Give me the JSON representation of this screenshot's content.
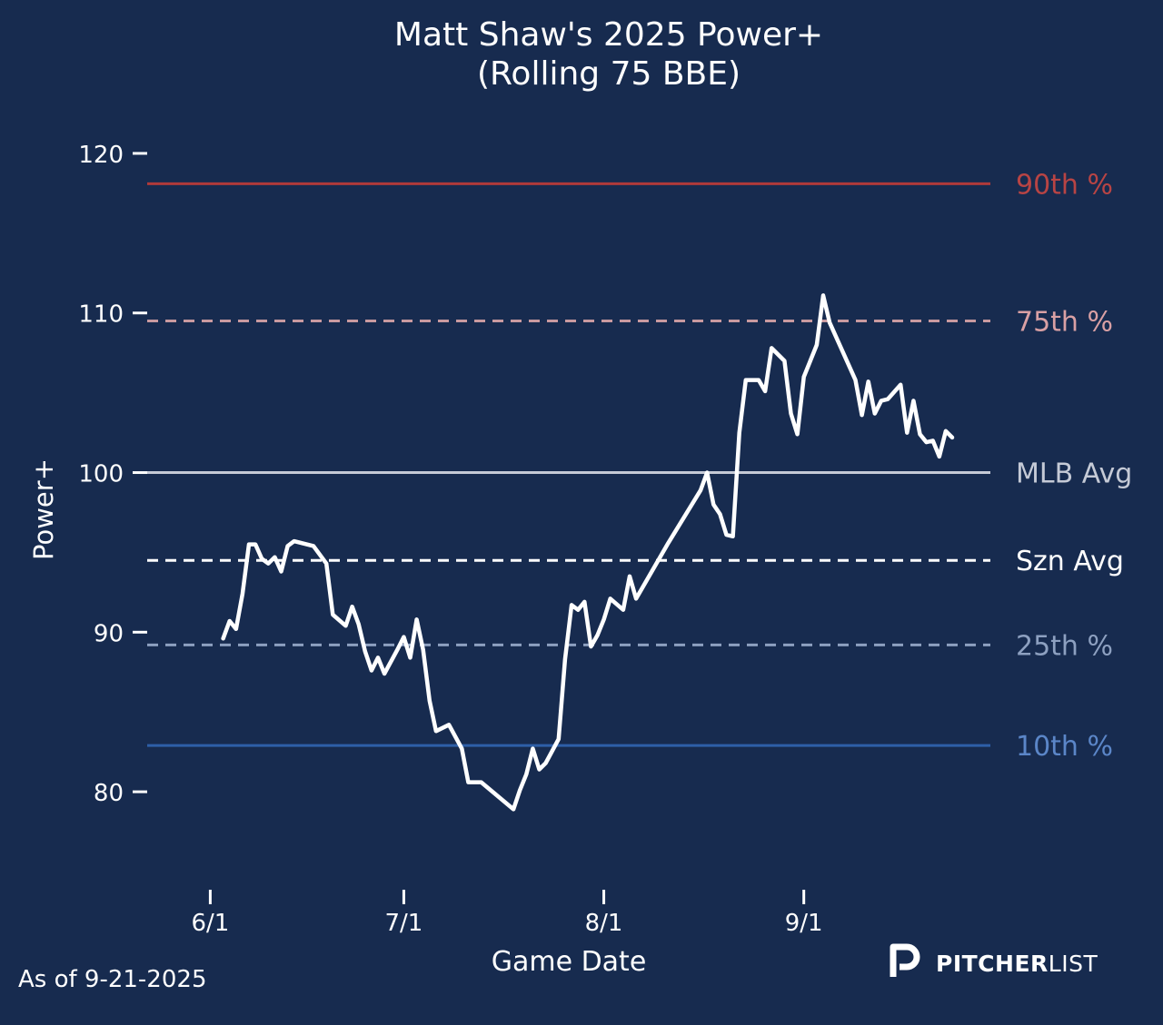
{
  "footer": {
    "as_of": "As of 9-21-2025",
    "brand_bold": "PITCHER",
    "brand_light": "LIST"
  },
  "colors": {
    "background": "#172b4f",
    "line": "#ffffff",
    "p90": "#b03a3a",
    "p75": "#c99aa0",
    "mlb_avg": "#c5cad6",
    "szn_avg": "#ffffff",
    "p25": "#8da0c0",
    "p10": "#2e5fa8",
    "p90_label": "#b84444",
    "p75_label": "#d9a0a4",
    "p10_label": "#5b86c8"
  },
  "chart_data": {
    "type": "line",
    "title": "Matt Shaw's 2025 Power+",
    "subtitle": "(Rolling 75 BBE)",
    "xlabel": "Game Date",
    "ylabel": "Power+",
    "x_domain": [
      "2025-05-28",
      "2025-09-24"
    ],
    "ylim": [
      75,
      122.5
    ],
    "y_ticks": [
      80,
      90,
      100,
      110,
      120
    ],
    "x_ticks": [
      {
        "date": "2025-06-01",
        "label": "6/1"
      },
      {
        "date": "2025-07-01",
        "label": "7/1"
      },
      {
        "date": "2025-08-01",
        "label": "8/1"
      },
      {
        "date": "2025-09-01",
        "label": "9/1"
      }
    ],
    "grid": false,
    "reference_lines": [
      {
        "key": "p90",
        "label": "90th %",
        "value": 118.1,
        "style": "solid"
      },
      {
        "key": "p75",
        "label": "75th %",
        "value": 109.5,
        "style": "dashed"
      },
      {
        "key": "mlb_avg",
        "label": "MLB Avg",
        "value": 100.0,
        "style": "solid"
      },
      {
        "key": "szn_avg",
        "label": "Szn Avg",
        "value": 94.5,
        "style": "dashed"
      },
      {
        "key": "p25",
        "label": "25th %",
        "value": 89.2,
        "style": "dashed"
      },
      {
        "key": "p10",
        "label": "10th %",
        "value": 82.9,
        "style": "solid"
      }
    ],
    "series": [
      {
        "points": [
          [
            "2025-06-03",
            89.6
          ],
          [
            "2025-06-04",
            90.7
          ],
          [
            "2025-06-05",
            90.2
          ],
          [
            "2025-06-06",
            92.4
          ],
          [
            "2025-06-07",
            95.5
          ],
          [
            "2025-06-08",
            95.5
          ],
          [
            "2025-06-09",
            94.6
          ],
          [
            "2025-06-10",
            94.3
          ],
          [
            "2025-06-11",
            94.7
          ],
          [
            "2025-06-12",
            93.8
          ],
          [
            "2025-06-13",
            95.4
          ],
          [
            "2025-06-14",
            95.7
          ],
          [
            "2025-06-17",
            95.4
          ],
          [
            "2025-06-19",
            94.3
          ],
          [
            "2025-06-20",
            91.1
          ],
          [
            "2025-06-22",
            90.4
          ],
          [
            "2025-06-23",
            91.6
          ],
          [
            "2025-06-24",
            90.5
          ],
          [
            "2025-06-25",
            88.8
          ],
          [
            "2025-06-26",
            87.6
          ],
          [
            "2025-06-27",
            88.4
          ],
          [
            "2025-06-28",
            87.4
          ],
          [
            "2025-06-30",
            88.9
          ],
          [
            "2025-07-01",
            89.7
          ],
          [
            "2025-07-02",
            88.4
          ],
          [
            "2025-07-03",
            90.8
          ],
          [
            "2025-07-04",
            88.9
          ],
          [
            "2025-07-05",
            85.7
          ],
          [
            "2025-07-06",
            83.8
          ],
          [
            "2025-07-08",
            84.2
          ],
          [
            "2025-07-10",
            82.7
          ],
          [
            "2025-07-11",
            80.6
          ],
          [
            "2025-07-13",
            80.6
          ],
          [
            "2025-07-18",
            78.9
          ],
          [
            "2025-07-19",
            80.1
          ],
          [
            "2025-07-20",
            81.1
          ],
          [
            "2025-07-21",
            82.7
          ],
          [
            "2025-07-22",
            81.4
          ],
          [
            "2025-07-23",
            81.8
          ],
          [
            "2025-07-25",
            83.3
          ],
          [
            "2025-07-26",
            88.3
          ],
          [
            "2025-07-27",
            91.7
          ],
          [
            "2025-07-28",
            91.4
          ],
          [
            "2025-07-29",
            91.9
          ],
          [
            "2025-07-30",
            89.1
          ],
          [
            "2025-07-31",
            89.8
          ],
          [
            "2025-08-01",
            90.8
          ],
          [
            "2025-08-02",
            92.1
          ],
          [
            "2025-08-04",
            91.4
          ],
          [
            "2025-08-05",
            93.5
          ],
          [
            "2025-08-06",
            92.1
          ],
          [
            "2025-08-11",
            95.6
          ],
          [
            "2025-08-16",
            98.9
          ],
          [
            "2025-08-17",
            100.0
          ],
          [
            "2025-08-18",
            98.0
          ],
          [
            "2025-08-19",
            97.4
          ],
          [
            "2025-08-20",
            96.1
          ],
          [
            "2025-08-21",
            96.0
          ],
          [
            "2025-08-22",
            102.5
          ],
          [
            "2025-08-23",
            105.8
          ],
          [
            "2025-08-25",
            105.8
          ],
          [
            "2025-08-26",
            105.1
          ],
          [
            "2025-08-27",
            107.8
          ],
          [
            "2025-08-29",
            107.0
          ],
          [
            "2025-08-30",
            103.7
          ],
          [
            "2025-08-31",
            102.4
          ],
          [
            "2025-09-01",
            106.0
          ],
          [
            "2025-09-03",
            108.0
          ],
          [
            "2025-09-04",
            111.1
          ],
          [
            "2025-09-05",
            109.4
          ],
          [
            "2025-09-09",
            105.8
          ],
          [
            "2025-09-10",
            103.6
          ],
          [
            "2025-09-11",
            105.7
          ],
          [
            "2025-09-12",
            103.7
          ],
          [
            "2025-09-13",
            104.5
          ],
          [
            "2025-09-14",
            104.6
          ],
          [
            "2025-09-16",
            105.5
          ],
          [
            "2025-09-17",
            102.5
          ],
          [
            "2025-09-18",
            104.5
          ],
          [
            "2025-09-19",
            102.4
          ],
          [
            "2025-09-20",
            101.9
          ],
          [
            "2025-09-21",
            102.0
          ],
          [
            "2025-09-22",
            101.0
          ],
          [
            "2025-09-23",
            102.6
          ],
          [
            "2025-09-24",
            102.2
          ]
        ]
      }
    ]
  }
}
